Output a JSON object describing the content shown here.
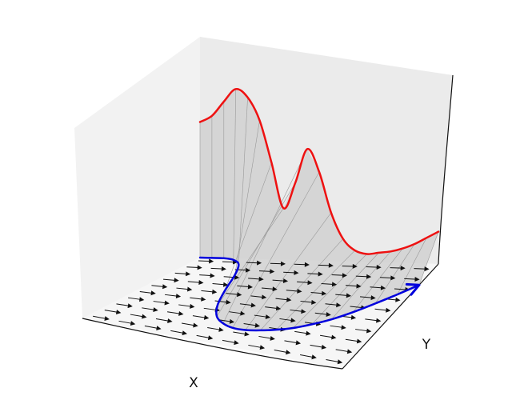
{
  "chart_data": {
    "type": "3d-line",
    "style": "xkcd",
    "xlabel": "X",
    "ylabel": "Y",
    "zlabel": "",
    "grid": false,
    "series": [
      {
        "color": "#ee1111",
        "projection": "wall",
        "x": [
          0,
          0.5,
          1,
          1.5,
          2,
          2.5,
          3,
          3.5,
          4,
          4.5,
          5,
          5.5,
          6,
          6.5,
          7,
          7.5,
          8,
          8.5,
          9,
          9.5,
          10
        ],
        "y": [
          10,
          10,
          10,
          10,
          10,
          10,
          10,
          10,
          10,
          10,
          10,
          10,
          10,
          10,
          10,
          10,
          10,
          10,
          10,
          10,
          10
        ],
        "z": [
          0.84,
          0.88,
          0.97,
          1.05,
          1.0,
          0.86,
          0.6,
          0.32,
          0.48,
          0.69,
          0.55,
          0.3,
          0.14,
          0.07,
          0.05,
          0.06,
          0.07,
          0.09,
          0.12,
          0.16,
          0.2
        ]
      },
      {
        "color": "#0000dd",
        "projection": "floor",
        "arrow_end": true,
        "x": [
          0,
          0.5,
          1,
          1.5,
          2,
          2.5,
          3,
          3.5,
          4,
          4.5,
          5,
          5.5,
          6,
          6.5,
          7,
          7.5,
          8,
          8.5,
          9,
          9.5,
          10
        ],
        "y": [
          10,
          10,
          10,
          9.8,
          9.2,
          7.8,
          5.8,
          4.0,
          2.8,
          2.2,
          1.9,
          1.9,
          2.1,
          2.4,
          2.8,
          3.4,
          4.1,
          5.0,
          6.0,
          7.0,
          8.0
        ],
        "z": [
          0,
          0,
          0,
          0,
          0,
          0,
          0,
          0,
          0,
          0,
          0,
          0,
          0,
          0,
          0,
          0,
          0,
          0,
          0,
          0,
          0
        ]
      }
    ],
    "floor_quiver": {
      "x_values": [
        0.5,
        1.5,
        2.5,
        3.5,
        4.5,
        5.5,
        6.5,
        7.5,
        8.5,
        9.5
      ],
      "y_values": [
        0.5,
        1.5,
        2.5,
        3.5,
        4.5,
        5.5,
        6.5,
        7.5,
        8.5,
        9.5
      ],
      "direction": "+x",
      "color": "#111111"
    },
    "xlim": [
      0,
      10
    ],
    "ylim": [
      0,
      10
    ],
    "zlim": [
      0,
      1.1
    ]
  }
}
